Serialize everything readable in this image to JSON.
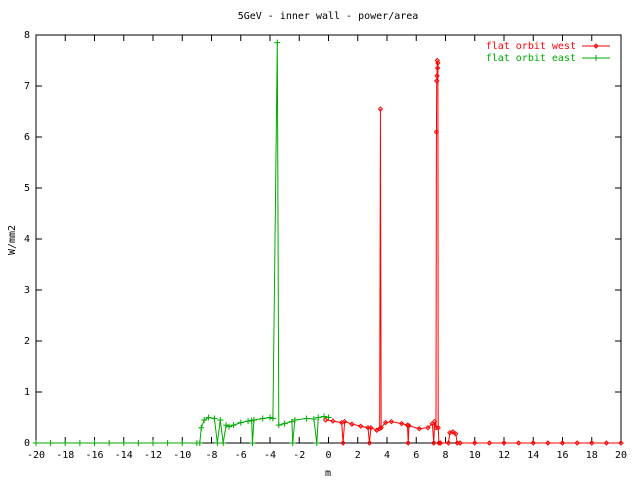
{
  "chart_data": {
    "type": "line",
    "title": "5GeV - inner wall - power/area",
    "x_label": "m",
    "y_label": "W/mm2",
    "xlim": [
      -20,
      20
    ],
    "ylim": [
      0,
      8
    ],
    "xticks": [
      -20,
      -18,
      -16,
      -14,
      -12,
      -10,
      -8,
      -6,
      -4,
      -2,
      0,
      2,
      4,
      6,
      8,
      10,
      12,
      14,
      16,
      18,
      20
    ],
    "yticks": [
      0,
      1,
      2,
      3,
      4,
      5,
      6,
      7,
      8
    ],
    "legend": "top-right",
    "series": [
      {
        "name": "flat orbit west",
        "color": "#ff0000",
        "marker": "diamond",
        "x": [
          -0.2,
          0.3,
          0.9,
          1.0,
          1.1,
          1.6,
          2.2,
          2.7,
          2.8,
          2.9,
          3.3,
          3.5,
          3.55,
          3.6,
          3.9,
          4.3,
          5.0,
          5.4,
          5.45,
          5.5,
          6.2,
          6.8,
          7.1,
          7.2,
          7.25,
          7.35,
          7.38,
          7.4,
          7.42,
          7.44,
          7.46,
          7.48,
          7.5,
          7.55,
          7.65,
          8.2,
          8.3,
          8.5,
          8.7,
          8.8,
          9,
          10,
          11,
          12,
          13,
          14,
          15,
          16,
          17,
          18,
          19,
          20
        ],
        "values": [
          0.45,
          0.43,
          0.4,
          0,
          0.42,
          0.37,
          0.33,
          0.3,
          0,
          0.3,
          0.25,
          0.28,
          6.55,
          0.3,
          0.4,
          0.42,
          0.38,
          0.35,
          0,
          0.34,
          0.28,
          0.3,
          0.38,
          0,
          0.42,
          0.3,
          6.1,
          7.1,
          7.2,
          7.5,
          7.35,
          7.45,
          0.3,
          0,
          0,
          0,
          0.2,
          0.22,
          0.18,
          0,
          0,
          0,
          0,
          0,
          0,
          0,
          0,
          0,
          0,
          0,
          0,
          0
        ]
      },
      {
        "name": "flat orbit east",
        "color": "#00aa00",
        "marker": "plus",
        "x": [
          -20,
          -19,
          -18,
          -17,
          -16,
          -15,
          -14,
          -13,
          -12,
          -11,
          -10,
          -9,
          -8.8,
          -8.7,
          -8.5,
          -8.2,
          -7.8,
          -7.6,
          -7.4,
          -7.2,
          -7.0,
          -6.8,
          -6.5,
          -6.0,
          -5.5,
          -5.25,
          -5.2,
          -5.1,
          -4.5,
          -4.0,
          -3.8,
          -3.5,
          -3.4,
          -3.0,
          -2.5,
          -2.45,
          -2.3,
          -1.5,
          -1.0,
          -0.8,
          -0.7,
          -0.3,
          0
        ],
        "values": [
          0,
          0,
          0,
          0,
          0,
          0,
          0,
          0,
          0,
          0,
          0,
          0,
          0,
          0.3,
          0.45,
          0.5,
          0.48,
          0,
          0.45,
          0,
          0.35,
          0.32,
          0.35,
          0.4,
          0.43,
          0.44,
          0,
          0.45,
          0.48,
          0.5,
          0.48,
          7.85,
          0.35,
          0.38,
          0.42,
          0,
          0.45,
          0.48,
          0.47,
          0,
          0.5,
          0.52,
          0.5
        ]
      }
    ]
  }
}
